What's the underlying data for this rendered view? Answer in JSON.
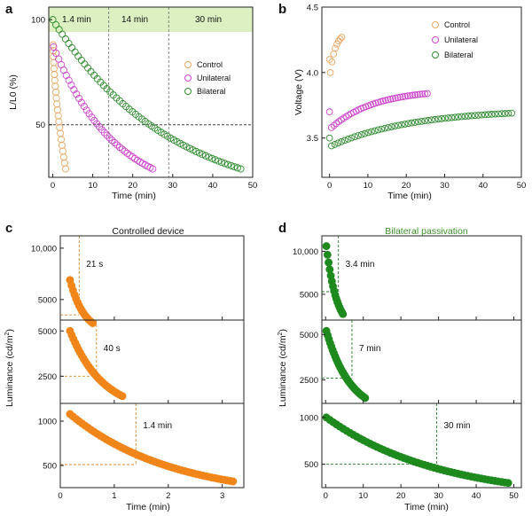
{
  "colors": {
    "control": "#E8A765",
    "unilateral": "#CC44CC",
    "bilateral": "#2E8B2E",
    "orange_fill": "#F0851A",
    "green_fill": "#1E8A1E",
    "band": "#DDF0C2"
  },
  "chart_data": [
    {
      "panel": "a",
      "type": "scatter",
      "xlabel": "Time (min)",
      "ylabel": "L/L0 (%)",
      "xlim": [
        -1,
        50
      ],
      "ylim": [
        25,
        106
      ],
      "xticks": [
        "0",
        "10",
        "20",
        "30",
        "40",
        "50"
      ],
      "yticks": [
        "50",
        "100"
      ],
      "band_labels": [
        "1.4 min",
        "14 min",
        "30 min"
      ],
      "band_dividers_x": [
        14,
        29
      ],
      "half_line_y": 50,
      "legend": [
        "Control",
        "Unilateral",
        "Bilateral"
      ],
      "legend_position": "right",
      "series": [
        {
          "name": "Control",
          "marker": "open-circle",
          "x_start": 0.1,
          "x_end": 3.2,
          "y_start": 88,
          "y_end": 29,
          "shape": "drop"
        },
        {
          "name": "Unilateral",
          "marker": "open-circle",
          "x_start": 0.2,
          "x_end": 25,
          "y_start": 87,
          "y_end": 29,
          "shape": "decay"
        },
        {
          "name": "Bilateral",
          "marker": "open-circle",
          "x_start": 0,
          "x_end": 47,
          "y_start": 100,
          "y_end": 29,
          "shape": "decay"
        }
      ]
    },
    {
      "panel": "b",
      "type": "scatter",
      "xlabel": "Time (min)",
      "ylabel": "Voltage (V)",
      "xlim": [
        -2,
        50
      ],
      "ylim": [
        3.2,
        4.5
      ],
      "xticks": [
        "0",
        "10",
        "20",
        "30",
        "40",
        "50"
      ],
      "yticks": [
        "3.5",
        "4.0",
        "4.5"
      ],
      "legend": [
        "Control",
        "Unilateral",
        "Bilateral"
      ],
      "legend_position": "top-right",
      "series": [
        {
          "name": "Control",
          "marker": "open-circle",
          "x_start": 0.2,
          "x_end": 3.2,
          "y_start": 4.0,
          "y_end": 4.27,
          "outlier": [
            0,
            4.1
          ]
        },
        {
          "name": "Unilateral",
          "marker": "open-circle",
          "x_start": 0.5,
          "x_end": 25.5,
          "y_start": 3.58,
          "y_end": 3.84,
          "outlier": [
            0,
            3.7
          ]
        },
        {
          "name": "Bilateral",
          "marker": "open-circle",
          "x_start": 0.5,
          "x_end": 47.5,
          "y_start": 3.44,
          "y_end": 3.69,
          "outlier": [
            0,
            3.5
          ]
        }
      ]
    },
    {
      "panel": "c",
      "title": "Controlled device",
      "type": "scatter",
      "xlabel": "Time (min)",
      "ylabel": "Luminance (cd/m²)",
      "xlim": [
        0,
        3.4
      ],
      "xticks": [
        "0",
        "1",
        "2",
        "3"
      ],
      "subplots": [
        {
          "ylim": [
            3000,
            11200
          ],
          "yticks": [
            "5000",
            "10,000"
          ],
          "ytick_values": [
            5000,
            10000
          ],
          "annotation": "21 s",
          "half_x": 0.35,
          "half_y": 3500,
          "points": {
            "x_start": 0.18,
            "x_end": 0.6,
            "y_start": 6900,
            "y_end": 2700
          }
        },
        {
          "ylim": [
            1000,
            5600
          ],
          "yticks": [
            "2500",
            "5000"
          ],
          "ytick_values": [
            2500,
            5000
          ],
          "annotation": "40 s",
          "half_x": 0.67,
          "half_y": 2500,
          "points": {
            "x_start": 0.18,
            "x_end": 1.15,
            "y_start": 5000,
            "y_end": 1400
          }
        },
        {
          "ylim": [
            250,
            1200
          ],
          "yticks": [
            "500",
            "1000"
          ],
          "ytick_values": [
            500,
            1000
          ],
          "annotation": "1.4 min",
          "half_x": 1.4,
          "half_y": 510,
          "points": {
            "x_start": 0.18,
            "x_end": 3.2,
            "y_start": 1080,
            "y_end": 320
          }
        }
      ]
    },
    {
      "panel": "d",
      "title": "Bilateral passivation",
      "type": "scatter",
      "xlabel": "Time (min)",
      "ylabel": "Luminance (cd/m²)",
      "xlim": [
        -1,
        52
      ],
      "xticks": [
        "0",
        "10",
        "20",
        "30",
        "40",
        "50"
      ],
      "subplots": [
        {
          "ylim": [
            2000,
            11800
          ],
          "yticks": [
            "5000",
            "10,000"
          ],
          "ytick_values": [
            5000,
            10000
          ],
          "annotation": "3.4 min",
          "half_x": 3.4,
          "half_y": 5300,
          "points": {
            "x_start": 0.2,
            "x_end": 4.6,
            "y_start": 10600,
            "y_end": 2700
          }
        },
        {
          "ylim": [
            1200,
            5800
          ],
          "yticks": [
            "2500",
            "5000"
          ],
          "ytick_values": [
            2500,
            5000
          ],
          "annotation": "7 min",
          "half_x": 7,
          "half_y": 2600,
          "points": {
            "x_start": 0.2,
            "x_end": 10.5,
            "y_start": 5200,
            "y_end": 1500
          }
        },
        {
          "ylim": [
            250,
            1150
          ],
          "yticks": [
            "500",
            "1000"
          ],
          "ytick_values": [
            500,
            1000
          ],
          "annotation": "30 min",
          "half_x": 29.5,
          "half_y": 500,
          "points": {
            "x_start": 0.2,
            "x_end": 48.5,
            "y_start": 1000,
            "y_end": 300
          }
        }
      ]
    }
  ]
}
